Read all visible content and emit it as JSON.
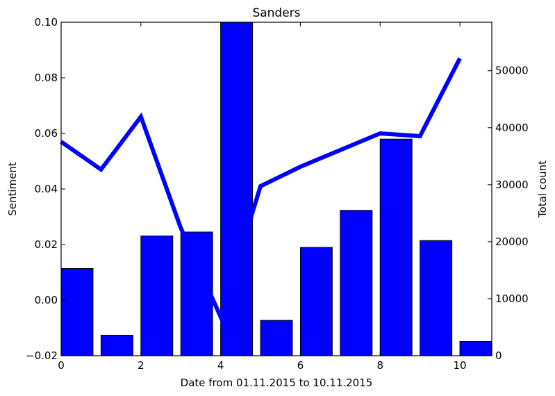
{
  "chart_data": {
    "type": "bar+line",
    "title": "Sanders",
    "xlabel": "Date from 01.11.2015 to 10.11.2015",
    "ylabel_left": "Sentiment",
    "ylabel_right": "Total count",
    "xlim": [
      0,
      10.8
    ],
    "ylim_left": [
      -0.02,
      0.1
    ],
    "ylim_right": [
      0,
      58500
    ],
    "x_ticks": [
      0,
      2,
      4,
      6,
      8,
      10
    ],
    "y_ticks_left": [
      -0.02,
      0.0,
      0.02,
      0.04,
      0.06,
      0.08,
      0.1
    ],
    "y_ticks_right": [
      0,
      10000,
      20000,
      30000,
      40000,
      50000
    ],
    "y_tick_labels_left": [
      "−0.02",
      "0.00",
      "0.02",
      "0.04",
      "0.06",
      "0.08",
      "0.10"
    ],
    "bar_width": 0.8,
    "bars": {
      "x": [
        0,
        1,
        2,
        3,
        4,
        5,
        6,
        7,
        8,
        9,
        10
      ],
      "values": [
        15300,
        3600,
        21000,
        21700,
        58500,
        6200,
        19000,
        25500,
        38000,
        20200,
        2500
      ]
    },
    "line": {
      "x": [
        0,
        1,
        2,
        3,
        4,
        5,
        6,
        7,
        8,
        9,
        10
      ],
      "values": [
        0.057,
        0.047,
        0.066,
        0.026,
        -0.006,
        0.041,
        0.048,
        0.054,
        0.06,
        0.059,
        0.087
      ]
    },
    "colors": {
      "bar_fill": "#0000ff",
      "bar_edge": "#000000",
      "line": "#0000ff"
    },
    "grid": false,
    "legend": "none"
  }
}
